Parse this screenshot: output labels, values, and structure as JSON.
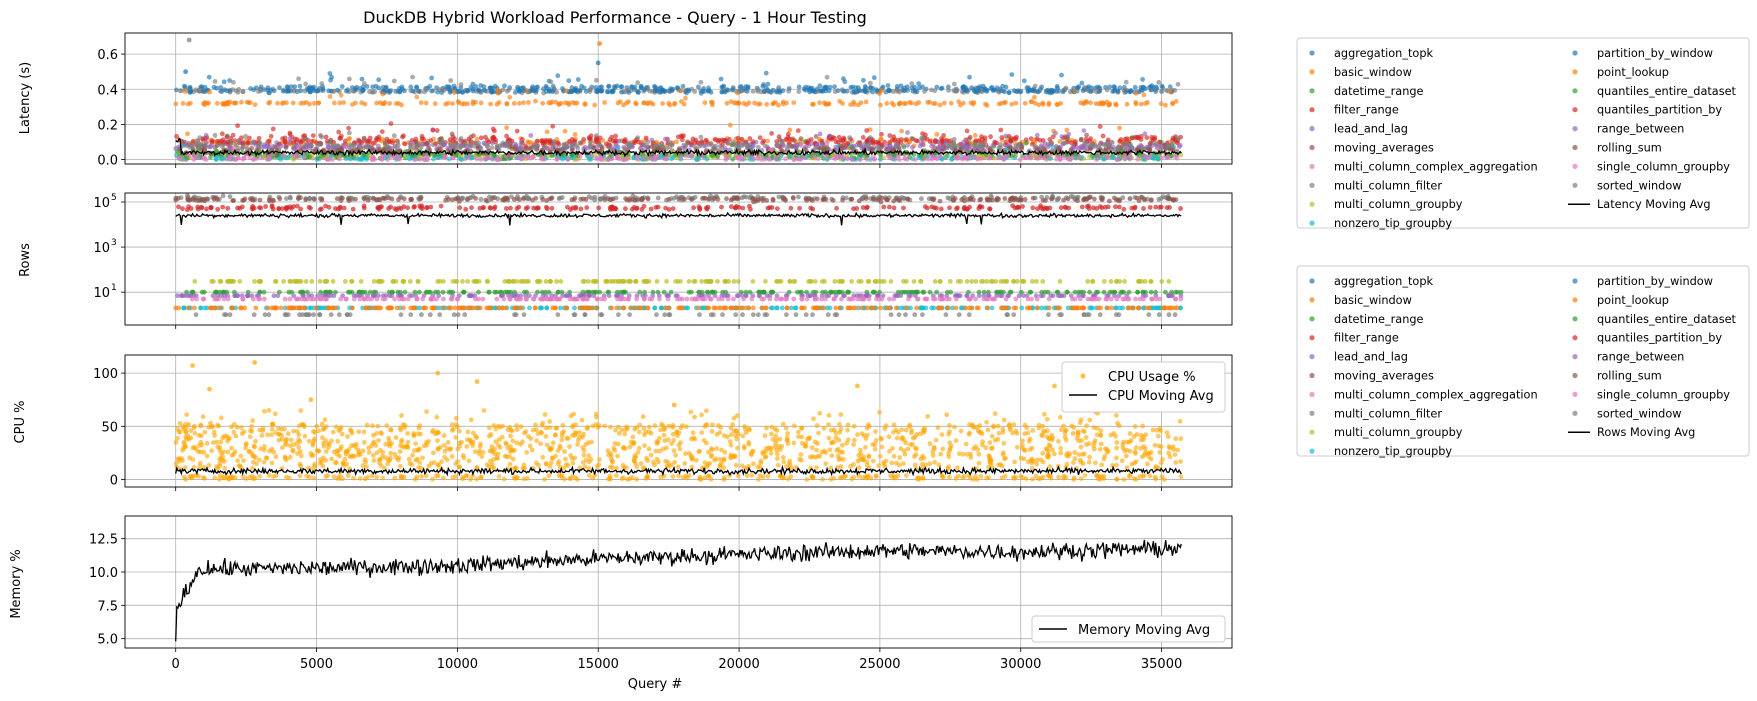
{
  "colors": {
    "series": [
      "#1f77b4",
      "#ff7f0e",
      "#2ca02c",
      "#d62728",
      "#9467bd",
      "#8c564b",
      "#e377c2",
      "#7f7f7f",
      "#bcbd22",
      "#17becf"
    ],
    "cpu": "#ffa500",
    "moving_avg": "#000000",
    "grid": "#b0b0b0"
  },
  "chart_data": [
    {
      "id": "latency",
      "type": "scatter",
      "title": "DuckDB Hybrid Workload Performance - Query - 1 Hour Testing",
      "ylabel": "Latency (s)",
      "xlabel": "",
      "xlim": [
        -1800,
        37500
      ],
      "ylim": [
        -0.025,
        0.72
      ],
      "yticks": [
        0.0,
        0.2,
        0.4,
        0.6
      ],
      "ytick_labels": [
        "0.0",
        "0.2",
        "0.4",
        "0.6"
      ],
      "grid": true,
      "series": [
        {
          "name": "aggregation_topk",
          "typical": 0.41
        },
        {
          "name": "basic_window",
          "typical": 0.1
        },
        {
          "name": "datetime_range",
          "typical": 0.02
        },
        {
          "name": "filter_range",
          "typical": 0.12
        },
        {
          "name": "lead_and_lag",
          "typical": 0.08
        },
        {
          "name": "moving_averages",
          "typical": 0.06
        },
        {
          "name": "multi_column_complex_aggregation",
          "typical": 0.01
        },
        {
          "name": "multi_column_filter",
          "typical": 0.39
        },
        {
          "name": "multi_column_groupby",
          "typical": 0.02
        },
        {
          "name": "nonzero_tip_groupby",
          "typical": 0.01
        },
        {
          "name": "partition_by_window",
          "typical": 0.39
        },
        {
          "name": "point_lookup",
          "typical": 0.32
        },
        {
          "name": "quantiles_entire_dataset",
          "typical": 0.03
        },
        {
          "name": "quantiles_partition_by",
          "typical": 0.1
        },
        {
          "name": "range_between",
          "typical": 0.07
        },
        {
          "name": "rolling_sum",
          "typical": 0.05
        },
        {
          "name": "single_column_groupby",
          "typical": 0.01
        },
        {
          "name": "sorted_window",
          "typical": 0.08
        }
      ],
      "outliers": [
        {
          "x": 480,
          "y": 0.68,
          "series": 7
        },
        {
          "x": 15050,
          "y": 0.66,
          "series": 11
        },
        {
          "x": 15000,
          "y": 0.55,
          "series": 0
        },
        {
          "x": 350,
          "y": 0.5,
          "series": 0
        }
      ],
      "moving_avg": {
        "name": "Latency Moving Avg",
        "level": 0.04,
        "spread": 0.02
      },
      "legend_title": "",
      "legend_position": "outside-right"
    },
    {
      "id": "rows",
      "type": "scatter",
      "ylabel": "Rows",
      "xlim": [
        -1800,
        37500
      ],
      "yscale": "log",
      "ylim": [
        0.35,
        250000
      ],
      "yticks": [
        10,
        1000,
        100000
      ],
      "ytick_labels": [
        "10",
        "10",
        "10"
      ],
      "ytick_exponents": [
        "1",
        "3",
        "5"
      ],
      "grid": true,
      "levels": [
        {
          "series": 7,
          "rows": 150000
        },
        {
          "series": 5,
          "rows": 130000
        },
        {
          "series": 3,
          "rows": 55000
        },
        {
          "series": 8,
          "rows": 30
        },
        {
          "series": 2,
          "rows": 10
        },
        {
          "series": 4,
          "rows": 7
        },
        {
          "series": 6,
          "rows": 5
        },
        {
          "series": 9,
          "rows": 2
        },
        {
          "series": 1,
          "rows": 2
        },
        {
          "series": 7,
          "rows": 1
        }
      ],
      "moving_avg": {
        "name": "Rows Moving Avg",
        "level": 25000
      },
      "legend_position": "outside-right"
    },
    {
      "id": "cpu",
      "type": "scatter",
      "ylabel": "CPU %",
      "xlim": [
        -1800,
        37500
      ],
      "ylim": [
        -7,
        117
      ],
      "yticks": [
        0,
        50,
        100
      ],
      "ytick_labels": [
        "0",
        "50",
        "100"
      ],
      "grid": true,
      "series": [
        {
          "name": "CPU Usage %",
          "typical_range": [
            0,
            55
          ]
        }
      ],
      "outliers": [
        {
          "x": 600,
          "y": 107
        },
        {
          "x": 2800,
          "y": 110
        },
        {
          "x": 9300,
          "y": 100
        },
        {
          "x": 1200,
          "y": 85
        },
        {
          "x": 24200,
          "y": 88
        },
        {
          "x": 31200,
          "y": 88
        },
        {
          "x": 10700,
          "y": 92
        },
        {
          "x": 4800,
          "y": 75
        },
        {
          "x": 17700,
          "y": 70
        }
      ],
      "moving_avg": {
        "name": "CPU Moving Avg",
        "level": 8
      },
      "legend_position": "upper-right"
    },
    {
      "id": "memory",
      "type": "line",
      "ylabel": "Memory %",
      "xlabel": "Query #",
      "xlim": [
        -1800,
        37500
      ],
      "ylim": [
        4.3,
        14.2
      ],
      "yticks": [
        5.0,
        7.5,
        10.0,
        12.5
      ],
      "ytick_labels": [
        "5.0",
        "7.5",
        "10.0",
        "12.5"
      ],
      "xticks": [
        0,
        5000,
        10000,
        15000,
        20000,
        25000,
        30000,
        35000
      ],
      "xtick_labels": [
        "0",
        "5000",
        "10000",
        "15000",
        "20000",
        "25000",
        "30000",
        "35000"
      ],
      "grid": true,
      "series": [
        {
          "name": "Memory Moving Avg",
          "start": 4.8,
          "x": [
            0,
            800,
            5000,
            10000,
            15000,
            20000,
            25000,
            30000,
            35700
          ],
          "trend": [
            7.0,
            10.2,
            10.3,
            10.5,
            11.0,
            11.3,
            11.6,
            11.5,
            11.8
          ]
        }
      ],
      "legend_position": "lower-right"
    }
  ],
  "legends": {
    "latency_legend_columns": 2,
    "rows_legend_columns": 2
  }
}
